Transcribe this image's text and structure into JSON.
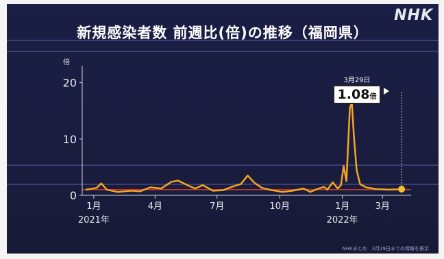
{
  "brand": "NHK",
  "chart_data": {
    "type": "line",
    "title": "新規感染者数 前週比(倍)の推移（福岡県）",
    "ylabel": "倍",
    "ylim": [
      0,
      23
    ],
    "yticks": [
      0,
      10,
      20
    ],
    "x_ticks": [
      {
        "date": "2021-01-01",
        "label": "1月"
      },
      {
        "date": "2021-04-01",
        "label": "4月"
      },
      {
        "date": "2021-07-01",
        "label": "7月"
      },
      {
        "date": "2021-10-01",
        "label": "10月"
      },
      {
        "date": "2022-01-01",
        "label": "1月"
      },
      {
        "date": "2022-03-01",
        "label": "3月"
      }
    ],
    "year_labels": [
      {
        "date": "2021-01-01",
        "label": "2021年"
      },
      {
        "date": "2022-01-01",
        "label": "2022年"
      }
    ],
    "xlim": [
      "2020-12-15",
      "2022-04-12"
    ],
    "series": [
      {
        "color": "#f5a623",
        "points": [
          [
            "2020-12-20",
            1.0
          ],
          [
            "2021-01-05",
            1.3
          ],
          [
            "2021-01-12",
            2.1
          ],
          [
            "2021-01-20",
            1.0
          ],
          [
            "2021-02-05",
            0.6
          ],
          [
            "2021-02-25",
            0.8
          ],
          [
            "2021-03-10",
            0.7
          ],
          [
            "2021-03-25",
            1.4
          ],
          [
            "2021-04-10",
            1.2
          ],
          [
            "2021-04-25",
            2.4
          ],
          [
            "2021-05-05",
            2.6
          ],
          [
            "2021-05-20",
            1.7
          ],
          [
            "2021-05-30",
            1.2
          ],
          [
            "2021-06-10",
            1.8
          ],
          [
            "2021-06-25",
            0.8
          ],
          [
            "2021-07-10",
            0.9
          ],
          [
            "2021-07-25",
            1.6
          ],
          [
            "2021-08-05",
            2.0
          ],
          [
            "2021-08-15",
            3.5
          ],
          [
            "2021-08-25",
            2.2
          ],
          [
            "2021-09-05",
            1.3
          ],
          [
            "2021-09-20",
            0.9
          ],
          [
            "2021-10-05",
            0.6
          ],
          [
            "2021-10-20",
            0.8
          ],
          [
            "2021-11-05",
            1.2
          ],
          [
            "2021-11-15",
            0.6
          ],
          [
            "2021-11-25",
            1.1
          ],
          [
            "2021-12-05",
            1.5
          ],
          [
            "2021-12-10",
            1.0
          ],
          [
            "2021-12-18",
            2.3
          ],
          [
            "2021-12-25",
            1.2
          ],
          [
            "2021-12-30",
            1.8
          ],
          [
            "2022-01-03",
            5.2
          ],
          [
            "2022-01-07",
            2.5
          ],
          [
            "2022-01-12",
            15.5
          ],
          [
            "2022-01-15",
            16.5
          ],
          [
            "2022-01-18",
            10.5
          ],
          [
            "2022-01-22",
            4.5
          ],
          [
            "2022-01-27",
            2.0
          ],
          [
            "2022-02-05",
            1.4
          ],
          [
            "2022-02-20",
            1.1
          ],
          [
            "2022-03-10",
            1.0
          ],
          [
            "2022-03-29",
            1.08
          ]
        ]
      }
    ],
    "highlight": {
      "date_label": "3月29日",
      "value": "1.08",
      "unit": "倍"
    }
  },
  "source_note": "NHKまとめ　3月29日までの情報を表示"
}
